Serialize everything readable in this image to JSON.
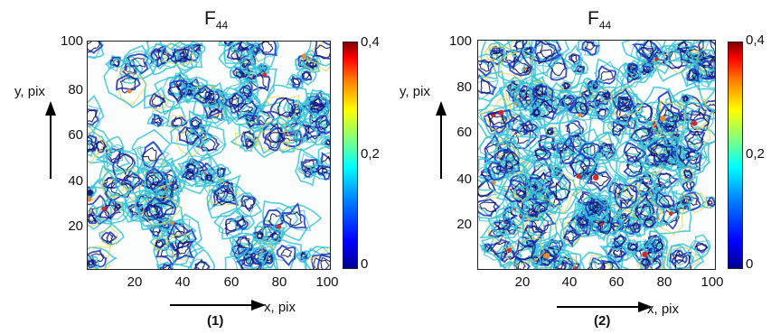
{
  "chart_data": [
    {
      "type": "heatmap",
      "title_main": "F",
      "title_sub": "44",
      "xlabel": "x, pix",
      "ylabel": "y, pix",
      "panel_label": "(1)",
      "x_ticks": [
        "20",
        "40",
        "60",
        "80",
        "100"
      ],
      "y_ticks": [
        "100",
        "80",
        "60",
        "40",
        "20"
      ],
      "xlim": [
        0,
        100
      ],
      "ylim": [
        0,
        100
      ],
      "colorbar": {
        "ticks": [
          "0,4",
          "0,2",
          "0"
        ],
        "range": [
          0,
          0.4
        ]
      }
    },
    {
      "type": "heatmap",
      "title_main": "F",
      "title_sub": "44",
      "xlabel": "x, pix",
      "ylabel": "y, pix",
      "panel_label": "(2)",
      "x_ticks": [
        "20",
        "40",
        "60",
        "80",
        "100"
      ],
      "y_ticks": [
        "100",
        "80",
        "60",
        "40",
        "20"
      ],
      "xlim": [
        0,
        100
      ],
      "ylim": [
        0,
        100
      ],
      "colorbar": {
        "ticks": [
          "0,4",
          "0,2",
          "0"
        ],
        "range": [
          0,
          0.4
        ]
      }
    }
  ],
  "colors": {
    "dark": "#0a0a50",
    "blue": "#1a2fbf",
    "cyan": "#35c3d6",
    "yellow": "#e8d44a",
    "orange": "#e88a30",
    "red": "#d02a2a"
  }
}
